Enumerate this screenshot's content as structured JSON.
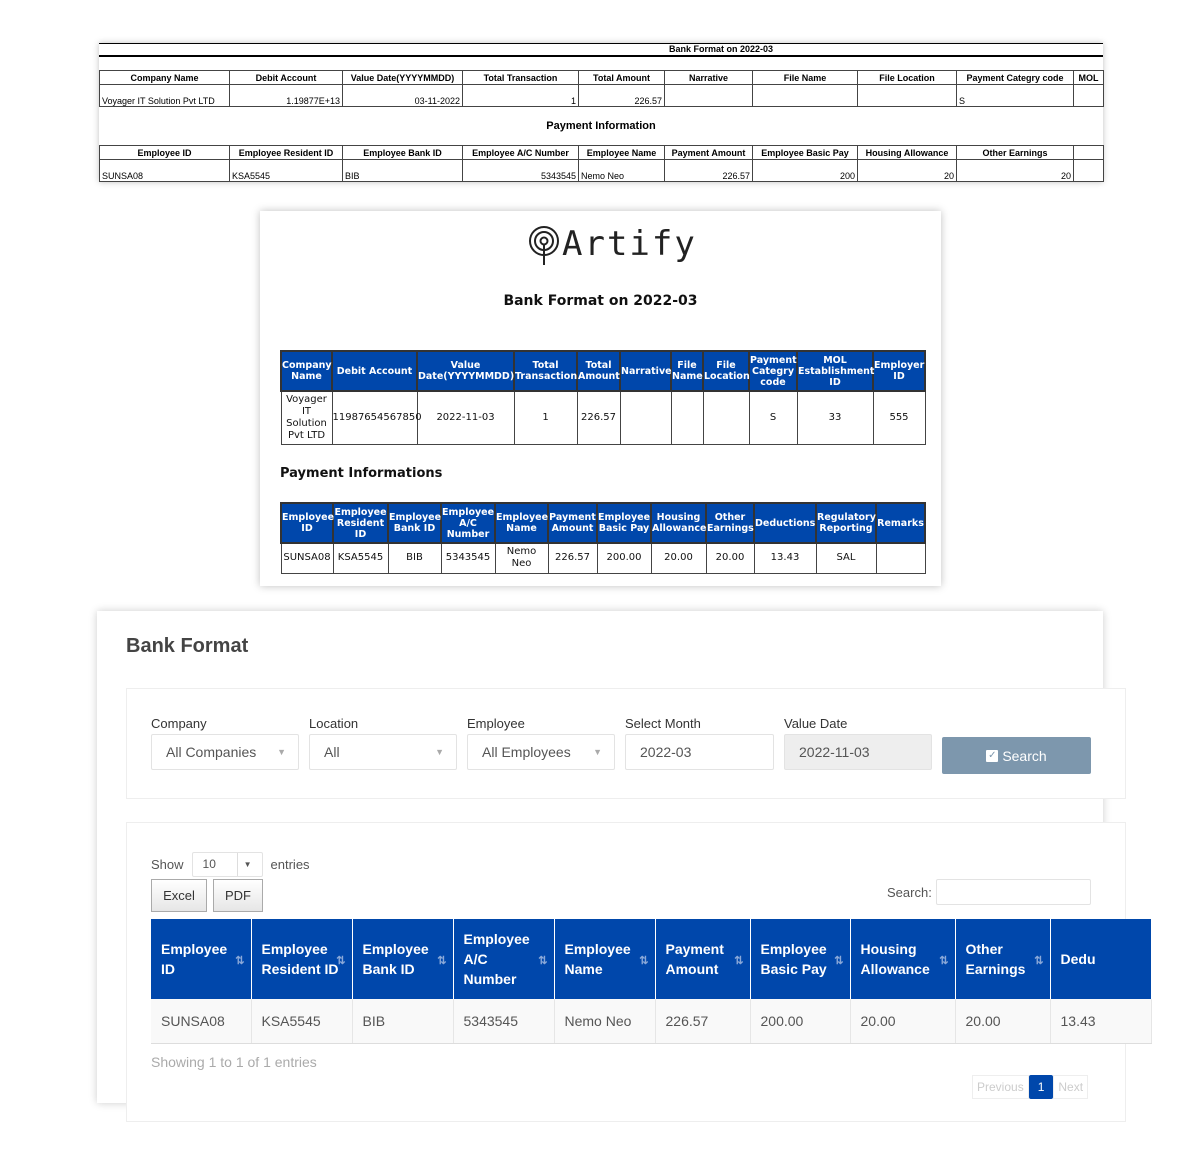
{
  "excel": {
    "title": "Bank Format on 2022-03",
    "company_headers": [
      "Company Name",
      "Debit Account",
      "Value Date(YYYYMMDD)",
      "Total Transaction",
      "Total Amount",
      "Narrative",
      "File Name",
      "File Location",
      "Payment Categry code",
      "MOL"
    ],
    "company_row": [
      "Voyager IT Solution Pvt LTD",
      "1.19877E+13",
      "03-11-2022",
      "1",
      "226.57",
      "",
      "",
      "",
      "S",
      ""
    ],
    "section_title": "Payment Information",
    "payment_headers": [
      "Employee ID",
      "Employee Resident ID",
      "Employee Bank ID",
      "Employee A/C Number",
      "Employee Name",
      "Payment Amount",
      "Employee Basic Pay",
      "Housing Allowance",
      "Other Earnings",
      ""
    ],
    "payment_row": [
      "SUNSA08",
      "KSA5545",
      "BIB",
      "5343545",
      "Nemo Neo",
      "226.57",
      "200",
      "20",
      "20",
      ""
    ]
  },
  "pdf": {
    "logo_text": "Artify",
    "title": "Bank Format on 2022-03",
    "company_headers": [
      "Company Name",
      "Debit Account",
      "Value Date(YYYYMMDD)",
      "Total Transaction",
      "Total Amount",
      "Narrative",
      "File Name",
      "File Location",
      "Payment Categry code",
      "MOL Establishment ID",
      "Employer ID"
    ],
    "company_row": [
      "Voyager IT Solution Pvt LTD",
      "11987654567850",
      "2022-11-03",
      "1",
      "226.57",
      "",
      "",
      "",
      "S",
      "33",
      "555"
    ],
    "section_title": "Payment Informations",
    "payment_headers": [
      "Employee ID",
      "Employee Resident ID",
      "Employee Bank ID",
      "Employee A/C Number",
      "Employee Name",
      "Payment Amount",
      "Employee Basic Pay",
      "Housing Allowance",
      "Other Earnings",
      "Deductions",
      "Regulatory Reporting",
      "Remarks"
    ],
    "payment_row": [
      "SUNSA08",
      "KSA5545",
      "BIB",
      "5343545",
      "Nemo Neo",
      "226.57",
      "200.00",
      "20.00",
      "20.00",
      "13.43",
      "SAL",
      ""
    ]
  },
  "web": {
    "page_title": "Bank Format",
    "filters": {
      "company": {
        "label": "Company",
        "value": "All Companies"
      },
      "location": {
        "label": "Location",
        "value": "All"
      },
      "employee": {
        "label": "Employee",
        "value": "All Employees"
      },
      "month": {
        "label": "Select Month",
        "value": "2022-03"
      },
      "value_date": {
        "label": "Value Date",
        "value": "2022-11-03"
      },
      "search_button": "Search"
    },
    "show_label": "Show",
    "page_size": "10",
    "entries_label": "entries",
    "excel_button": "Excel",
    "pdf_button": "PDF",
    "search_label": "Search:",
    "search_value": "",
    "headers": [
      "Employee ID",
      "Employee Resident ID",
      "Employee Bank ID",
      "Employee A/C Number",
      "Employee Name",
      "Payment Amount",
      "Employee Basic Pay",
      "Housing Allowance",
      "Other Earnings",
      "Dedu"
    ],
    "row": [
      "SUNSA08",
      "KSA5545",
      "BIB",
      "5343545",
      "Nemo Neo",
      "226.57",
      "200.00",
      "20.00",
      "20.00",
      "13.43"
    ],
    "info": "Showing 1 to 1 of 1 entries",
    "pagination": {
      "previous": "Previous",
      "current": "1",
      "next": "Next"
    },
    "accent": "#0047ab",
    "button_color": "#7d97ad"
  }
}
